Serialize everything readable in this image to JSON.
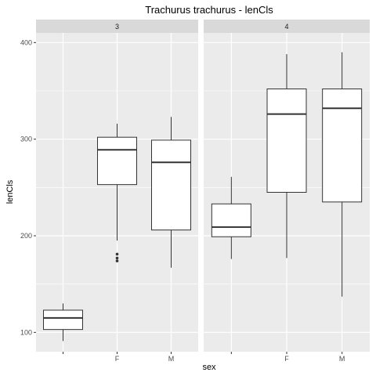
{
  "chart_data": {
    "type": "boxplot",
    "title": "Trachurus trachurus - lenCls",
    "xlabel": "sex",
    "ylabel": "lenCls",
    "categories": [
      "",
      "F",
      "M"
    ],
    "ylim": [
      80,
      410
    ],
    "yticks": [
      100,
      200,
      300,
      400
    ],
    "grid": true,
    "colors": {
      "panel_bg": "#ebebeb",
      "strip_bg": "#d9d9d9",
      "grid": "#ffffff",
      "box_fill": "#ffffff",
      "line": "#333333"
    },
    "facets": [
      {
        "label": "3",
        "boxes": [
          {
            "category": "",
            "min": 91,
            "q1": 103,
            "median": 115,
            "q3": 123,
            "max": 130,
            "outliers": []
          },
          {
            "category": "F",
            "min": 195,
            "q1": 253,
            "median": 289,
            "q3": 302,
            "max": 316,
            "outliers": [
              174,
              177,
              181
            ]
          },
          {
            "category": "M",
            "min": 167,
            "q1": 206,
            "median": 276,
            "q3": 299,
            "max": 323,
            "outliers": []
          }
        ]
      },
      {
        "label": "4",
        "boxes": [
          {
            "category": "",
            "min": 176,
            "q1": 199,
            "median": 209,
            "q3": 233,
            "max": 261,
            "outliers": []
          },
          {
            "category": "F",
            "min": 177,
            "q1": 245,
            "median": 326,
            "q3": 352,
            "max": 388,
            "outliers": []
          },
          {
            "category": "M",
            "min": 137,
            "q1": 235,
            "median": 332,
            "q3": 352,
            "max": 390,
            "outliers": []
          }
        ]
      }
    ]
  }
}
